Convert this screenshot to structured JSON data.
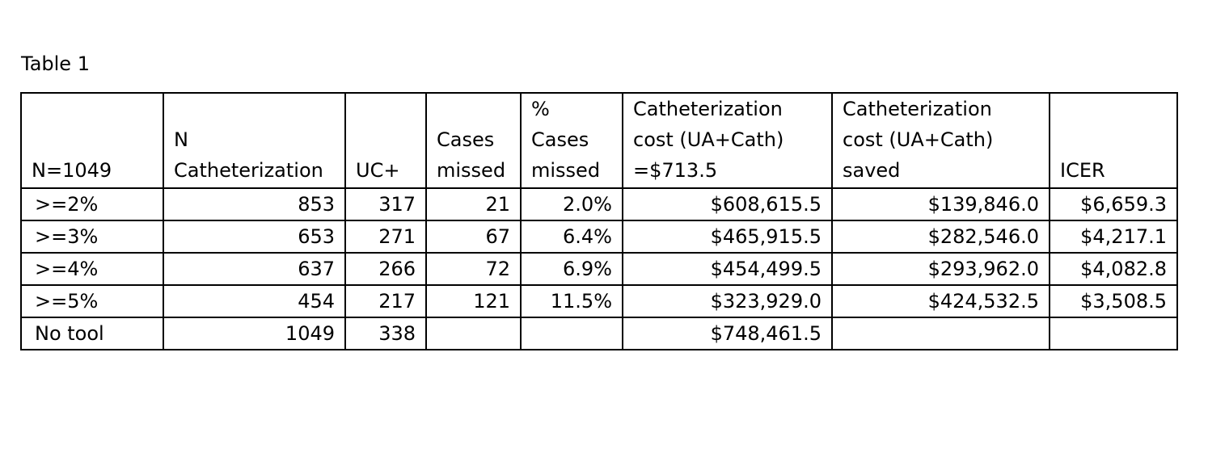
{
  "caption": "Table 1",
  "headers": [
    [
      "N=1049"
    ],
    [
      "N",
      "Catheterization"
    ],
    [
      "UC+"
    ],
    [
      "Cases",
      "missed"
    ],
    [
      "%",
      "Cases",
      "missed"
    ],
    [
      "Catheterization",
      "cost (UA+Cath)",
      "=$713.5"
    ],
    [
      "Catheterization",
      "cost (UA+Cath)",
      "saved"
    ],
    [
      "ICER"
    ]
  ],
  "rows": [
    [
      ">=2%",
      "853",
      "317",
      "21",
      "2.0%",
      "$608,615.5",
      "$139,846.0",
      "$6,659.3"
    ],
    [
      ">=3%",
      "653",
      "271",
      "67",
      "6.4%",
      "$465,915.5",
      "$282,546.0",
      "$4,217.1"
    ],
    [
      ">=4%",
      "637",
      "266",
      "72",
      "6.9%",
      "$454,499.5",
      "$293,962.0",
      "$4,082.8"
    ],
    [
      ">=5%",
      "454",
      "217",
      "121",
      "11.5%",
      "$323,929.0",
      "$424,532.5",
      "$3,508.5"
    ],
    [
      "No tool",
      "1049",
      "338",
      "",
      "",
      "$748,461.5",
      "",
      ""
    ]
  ]
}
